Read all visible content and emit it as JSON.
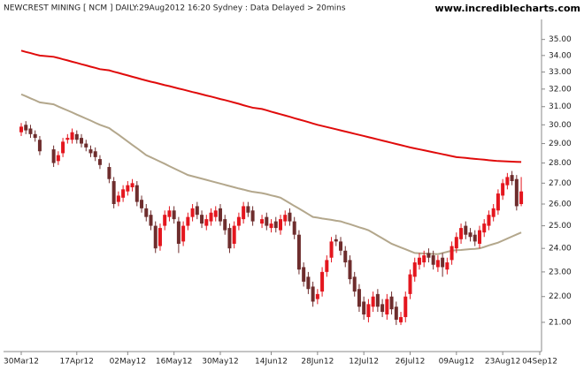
{
  "chart_data": {
    "type": "candlestick",
    "title": "NEWCREST MINING [ NCM ] DAILY:29Aug2012 16:20 Sydney : Data Delayed > 20mins",
    "source": "www.incrediblecharts.com",
    "log_scale": true,
    "up_color": "#e4161e",
    "down_color": "#6e2d2d",
    "x": [
      "2012-03-30",
      "2012-04-02",
      "2012-04-03",
      "2012-04-04",
      "2012-04-05",
      "2012-04-10",
      "2012-04-11",
      "2012-04-12",
      "2012-04-13",
      "2012-04-16",
      "2012-04-17",
      "2012-04-18",
      "2012-04-19",
      "2012-04-20",
      "2012-04-23",
      "2012-04-24",
      "2012-04-26",
      "2012-04-27",
      "2012-04-30",
      "2012-05-01",
      "2012-05-02",
      "2012-05-03",
      "2012-05-04",
      "2012-05-07",
      "2012-05-08",
      "2012-05-09",
      "2012-05-10",
      "2012-05-11",
      "2012-05-14",
      "2012-05-15",
      "2012-05-16",
      "2012-05-17",
      "2012-05-18",
      "2012-05-21",
      "2012-05-22",
      "2012-05-23",
      "2012-05-24",
      "2012-05-25",
      "2012-05-28",
      "2012-05-29",
      "2012-05-30",
      "2012-05-31",
      "2012-06-01",
      "2012-06-04",
      "2012-06-05",
      "2012-06-06",
      "2012-06-07",
      "2012-06-08",
      "2012-06-12",
      "2012-06-13",
      "2012-06-14",
      "2012-06-15",
      "2012-06-18",
      "2012-06-19",
      "2012-06-20",
      "2012-06-21",
      "2012-06-22",
      "2012-06-25",
      "2012-06-26",
      "2012-06-27",
      "2012-06-28",
      "2012-06-29",
      "2012-07-02",
      "2012-07-03",
      "2012-07-04",
      "2012-07-05",
      "2012-07-06",
      "2012-07-09",
      "2012-07-10",
      "2012-07-11",
      "2012-07-12",
      "2012-07-13",
      "2012-07-16",
      "2012-07-17",
      "2012-07-18",
      "2012-07-19",
      "2012-07-20",
      "2012-07-23",
      "2012-07-24",
      "2012-07-25",
      "2012-07-26",
      "2012-07-27",
      "2012-07-30",
      "2012-07-31",
      "2012-08-01",
      "2012-08-02",
      "2012-08-03",
      "2012-08-06",
      "2012-08-07",
      "2012-08-08",
      "2012-08-09",
      "2012-08-10",
      "2012-08-13",
      "2012-08-14",
      "2012-08-15",
      "2012-08-16",
      "2012-08-17",
      "2012-08-20",
      "2012-08-21",
      "2012-08-22",
      "2012-08-23",
      "2012-08-24",
      "2012-08-27",
      "2012-08-28",
      "2012-08-29"
    ],
    "open": [
      29.6,
      30.0,
      29.8,
      29.5,
      29.2,
      28.7,
      28.1,
      28.5,
      29.2,
      29.2,
      29.5,
      29.3,
      29.0,
      28.7,
      28.6,
      28.2,
      27.8,
      27.1,
      26.1,
      26.3,
      26.6,
      26.8,
      26.9,
      26.2,
      25.8,
      25.5,
      25.0,
      24.1,
      25.0,
      25.4,
      25.7,
      25.2,
      24.3,
      25.0,
      25.4,
      25.9,
      25.5,
      25.0,
      25.2,
      25.4,
      25.8,
      25.3,
      24.9,
      24.2,
      25.0,
      25.3,
      25.9,
      25.7,
      25.1,
      25.4,
      24.9,
      25.2,
      24.8,
      25.2,
      25.6,
      25.2,
      24.6,
      23.2,
      22.8,
      22.4,
      21.9,
      22.2,
      23.0,
      23.6,
      24.4,
      24.3,
      23.9,
      23.5,
      22.8,
      22.3,
      21.8,
      21.2,
      21.6,
      22.1,
      21.7,
      21.3,
      22.0,
      21.6,
      21.0,
      21.2,
      22.1,
      22.8,
      23.3,
      23.4,
      23.8,
      23.7,
      23.2,
      23.6,
      23.1,
      23.5,
      24.0,
      24.4,
      25.0,
      24.7,
      24.6,
      24.2,
      24.7,
      25.0,
      25.4,
      25.7,
      26.4,
      26.9,
      27.4,
      27.2,
      26.0
    ],
    "high": [
      30.1,
      30.2,
      30.0,
      29.7,
      29.4,
      28.9,
      28.6,
      29.3,
      29.5,
      29.8,
      29.7,
      29.5,
      29.2,
      28.9,
      28.8,
      28.4,
      28.0,
      27.3,
      26.6,
      26.9,
      27.1,
      27.2,
      27.1,
      26.4,
      26.0,
      25.7,
      25.2,
      25.1,
      25.7,
      25.9,
      25.9,
      25.4,
      25.2,
      25.6,
      26.0,
      26.1,
      25.7,
      25.5,
      25.8,
      25.9,
      26.0,
      25.5,
      25.1,
      25.2,
      25.6,
      26.1,
      26.1,
      25.9,
      25.5,
      25.6,
      25.3,
      25.4,
      25.5,
      25.7,
      25.8,
      25.4,
      24.8,
      23.4,
      23.0,
      22.6,
      22.3,
      23.2,
      23.7,
      24.5,
      24.6,
      24.5,
      24.1,
      23.7,
      23.0,
      22.5,
      22.0,
      21.9,
      22.2,
      22.3,
      21.9,
      22.1,
      22.2,
      21.8,
      21.4,
      22.2,
      23.1,
      23.6,
      23.8,
      23.9,
      24.0,
      23.9,
      23.7,
      23.8,
      23.6,
      24.3,
      24.7,
      25.1,
      25.2,
      24.9,
      24.8,
      25.0,
      25.3,
      25.7,
      26.0,
      26.7,
      27.2,
      27.5,
      27.6,
      27.4,
      27.3
    ],
    "low": [
      29.4,
      29.5,
      29.3,
      29.1,
      28.4,
      27.8,
      27.9,
      28.3,
      29.0,
      29.0,
      29.0,
      28.8,
      28.6,
      28.3,
      28.1,
      27.7,
      27.0,
      25.8,
      25.9,
      26.1,
      26.4,
      26.6,
      25.9,
      25.6,
      25.2,
      24.8,
      23.8,
      23.9,
      24.8,
      25.2,
      25.1,
      23.8,
      24.1,
      24.8,
      25.2,
      25.3,
      24.9,
      24.8,
      25.0,
      25.2,
      25.0,
      24.6,
      23.8,
      24.0,
      24.8,
      25.1,
      25.4,
      25.0,
      24.9,
      24.8,
      24.7,
      24.7,
      24.6,
      25.0,
      25.0,
      24.4,
      22.9,
      22.4,
      22.1,
      21.6,
      21.7,
      22.0,
      22.8,
      23.4,
      24.1,
      23.7,
      23.2,
      22.5,
      22.0,
      21.4,
      21.1,
      21.0,
      21.4,
      21.4,
      21.2,
      21.1,
      21.3,
      20.9,
      20.9,
      21.0,
      21.9,
      22.6,
      23.1,
      23.2,
      23.4,
      23.1,
      23.0,
      22.8,
      22.9,
      23.3,
      23.8,
      24.2,
      24.4,
      24.3,
      24.1,
      24.0,
      24.5,
      24.8,
      25.2,
      25.5,
      26.2,
      26.7,
      26.9,
      25.7,
      25.9
    ],
    "close": [
      29.9,
      29.7,
      29.5,
      29.3,
      28.6,
      28.0,
      28.4,
      29.1,
      29.3,
      29.6,
      29.2,
      29.0,
      28.8,
      28.5,
      28.3,
      27.9,
      27.2,
      26.0,
      26.4,
      26.7,
      26.9,
      27.0,
      26.1,
      25.8,
      25.4,
      25.0,
      24.0,
      24.9,
      25.5,
      25.7,
      25.3,
      24.2,
      25.0,
      25.4,
      25.8,
      25.5,
      25.1,
      25.3,
      25.6,
      25.7,
      25.2,
      24.8,
      24.0,
      25.0,
      25.4,
      25.9,
      25.6,
      25.2,
      25.3,
      25.0,
      25.1,
      24.9,
      25.3,
      25.5,
      25.2,
      24.6,
      23.1,
      22.6,
      22.3,
      21.8,
      22.1,
      23.0,
      23.5,
      24.3,
      24.3,
      23.9,
      23.4,
      22.7,
      22.2,
      21.6,
      21.3,
      21.7,
      22.0,
      21.6,
      21.4,
      21.9,
      21.5,
      21.1,
      21.2,
      22.0,
      22.9,
      23.4,
      23.6,
      23.7,
      23.6,
      23.3,
      23.5,
      23.2,
      23.4,
      24.1,
      24.5,
      24.9,
      24.6,
      24.5,
      24.3,
      24.8,
      25.1,
      25.5,
      25.8,
      26.5,
      27.0,
      27.3,
      27.1,
      25.9,
      26.6
    ],
    "overlays": [
      {
        "color": "#e00b0b",
        "values": [
          34.3,
          34.22,
          34.15,
          34.07,
          34.0,
          33.92,
          33.85,
          33.77,
          33.7,
          33.62,
          33.55,
          33.47,
          33.4,
          33.32,
          33.25,
          33.17,
          33.1,
          33.02,
          32.95,
          32.87,
          32.8,
          32.72,
          32.65,
          32.57,
          32.5,
          32.43,
          32.37,
          32.3,
          32.23,
          32.17,
          32.1,
          32.03,
          31.97,
          31.9,
          31.83,
          31.77,
          31.7,
          31.63,
          31.57,
          31.5,
          31.43,
          31.37,
          31.3,
          31.23,
          31.16,
          31.08,
          31.01,
          30.94,
          30.87,
          30.8,
          30.72,
          30.65,
          30.58,
          30.51,
          30.44,
          30.36,
          30.29,
          30.22,
          30.15,
          30.07,
          30.0,
          29.94,
          29.88,
          29.82,
          29.76,
          29.7,
          29.64,
          29.58,
          29.52,
          29.46,
          29.4,
          29.34,
          29.28,
          29.22,
          29.16,
          29.1,
          29.04,
          28.98,
          28.92,
          28.86,
          28.8,
          28.75,
          28.7,
          28.65,
          28.6,
          28.55,
          28.5,
          28.45,
          28.4,
          28.35,
          28.3,
          28.28,
          28.26,
          28.23,
          28.21,
          28.19,
          28.17,
          28.14,
          28.12,
          28.1,
          28.09,
          28.08,
          28.07,
          28.06,
          28.05
        ]
      },
      {
        "color": "#b3a78c",
        "values": [
          31.7,
          31.59,
          31.47,
          31.36,
          31.24,
          31.13,
          31.01,
          30.9,
          30.79,
          30.68,
          30.56,
          30.45,
          30.34,
          30.23,
          30.11,
          30.0,
          29.82,
          29.64,
          29.47,
          29.29,
          29.11,
          28.93,
          28.76,
          28.58,
          28.4,
          28.29,
          28.18,
          28.07,
          27.96,
          27.84,
          27.73,
          27.62,
          27.51,
          27.4,
          27.34,
          27.28,
          27.22,
          27.16,
          27.1,
          27.04,
          26.98,
          26.92,
          26.86,
          26.8,
          26.74,
          26.69,
          26.63,
          26.58,
          26.52,
          26.47,
          26.41,
          26.36,
          26.3,
          26.17,
          26.04,
          25.91,
          25.79,
          25.66,
          25.53,
          25.4,
          25.37,
          25.33,
          25.3,
          25.27,
          25.23,
          25.2,
          25.13,
          25.07,
          25.0,
          24.93,
          24.87,
          24.8,
          24.68,
          24.56,
          24.44,
          24.32,
          24.2,
          24.12,
          24.04,
          23.96,
          23.88,
          23.8,
          23.79,
          23.78,
          23.77,
          23.76,
          23.75,
          23.8,
          23.85,
          23.9,
          23.92,
          23.93,
          23.95,
          23.97,
          23.98,
          24.0,
          24.06,
          24.13,
          24.19,
          24.25,
          24.34,
          24.43,
          24.52,
          24.61,
          24.7
        ]
      }
    ],
    "xlim": [
      "2012-03-30",
      "2012-09-04"
    ],
    "xticks": [
      {
        "value": "2012-03-30",
        "label": "30Mar12"
      },
      {
        "value": "2012-04-17",
        "label": "17Apr12"
      },
      {
        "value": "2012-05-02",
        "label": "02May12"
      },
      {
        "value": "2012-05-16",
        "label": "16May12"
      },
      {
        "value": "2012-05-30",
        "label": "30May12"
      },
      {
        "value": "2012-06-14",
        "label": "14Jun12"
      },
      {
        "value": "2012-06-28",
        "label": "28Jun12"
      },
      {
        "value": "2012-07-12",
        "label": "12Jul12"
      },
      {
        "value": "2012-07-26",
        "label": "26Jul12"
      },
      {
        "value": "2012-08-09",
        "label": "09Aug12"
      },
      {
        "value": "2012-08-23",
        "label": "23Aug12"
      },
      {
        "value": "2012-09-04",
        "label": "04Sep12"
      }
    ],
    "ylim": [
      20.5,
      36
    ],
    "yticks": [
      {
        "value": 21,
        "label": "21.00"
      },
      {
        "value": 22,
        "label": "22.00"
      },
      {
        "value": 23,
        "label": "23.00"
      },
      {
        "value": 24,
        "label": "24.00"
      },
      {
        "value": 25,
        "label": "25.00"
      },
      {
        "value": 26,
        "label": "26.00"
      },
      {
        "value": 27,
        "label": "27.00"
      },
      {
        "value": 28,
        "label": "28.00"
      },
      {
        "value": 29,
        "label": "29.00"
      },
      {
        "value": 30,
        "label": "30.00"
      },
      {
        "value": 31,
        "label": "31.00"
      },
      {
        "value": 32,
        "label": "32.00"
      },
      {
        "value": 33,
        "label": "33.00"
      },
      {
        "value": 34,
        "label": "34.00"
      },
      {
        "value": 35,
        "label": "35.00"
      }
    ]
  }
}
